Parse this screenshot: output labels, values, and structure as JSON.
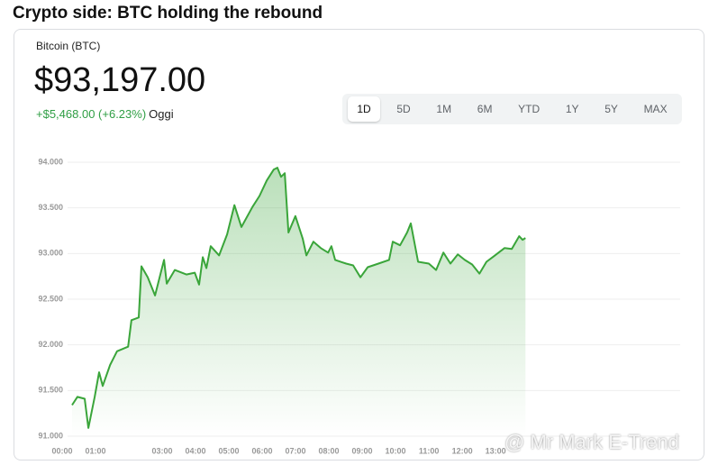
{
  "heading": "Crypto side: BTC holding the rebound",
  "widget": {
    "name": "Bitcoin (BTC)",
    "price": "$93,197.00",
    "change": "+$5,468.00 (+6.23%)",
    "period": "Oggi",
    "ranges": [
      "1D",
      "5D",
      "1M",
      "6M",
      "YTD",
      "1Y",
      "5Y",
      "MAX"
    ],
    "active_range": "1D"
  },
  "watermark": "@ Mr Mark E-Trend",
  "chart_data": {
    "type": "area",
    "color": "#3aa53a",
    "grid": true,
    "x": [
      0.54,
      0.7,
      0.92,
      1.03,
      1.22,
      1.35,
      1.46,
      1.68,
      1.89,
      2.22,
      2.32,
      2.54,
      2.62,
      2.81,
      3.03,
      3.3,
      3.38,
      3.62,
      3.97,
      4.22,
      4.35,
      4.46,
      4.57,
      4.7,
      4.95,
      5.19,
      5.41,
      5.62,
      5.95,
      6.16,
      6.38,
      6.59,
      6.7,
      6.81,
      6.92,
      7.03,
      7.24,
      7.46,
      7.57,
      7.78,
      8.0,
      8.22,
      8.32,
      8.43,
      8.76,
      8.97,
      9.19,
      9.41,
      9.73,
      10.05,
      10.16,
      10.38,
      10.59,
      10.7,
      10.92,
      11.24,
      11.46,
      11.68,
      11.89,
      12.11,
      12.32,
      12.54,
      12.76,
      12.97,
      13.19,
      13.51,
      13.73,
      13.95,
      14.05,
      14.14
    ],
    "values": [
      91340,
      91430,
      91410,
      91090,
      91430,
      91700,
      91550,
      91780,
      91930,
      91980,
      92270,
      92300,
      92860,
      92740,
      92540,
      92930,
      92670,
      92820,
      92770,
      92790,
      92660,
      92960,
      92840,
      93080,
      92980,
      93210,
      93530,
      93290,
      93510,
      93630,
      93800,
      93920,
      93940,
      93840,
      93880,
      93230,
      93410,
      93160,
      92980,
      93130,
      93060,
      93010,
      93080,
      92930,
      92890,
      92870,
      92740,
      92850,
      92890,
      92930,
      93130,
      93090,
      93230,
      93330,
      92910,
      92890,
      92820,
      93010,
      92890,
      92990,
      92930,
      92880,
      92780,
      92910,
      92970,
      93060,
      93050,
      93190,
      93150,
      93170
    ],
    "ylim": [
      91000,
      94000
    ],
    "yticks": [
      {
        "value": 91000,
        "label": "91.000"
      },
      {
        "value": 91500,
        "label": "91.500"
      },
      {
        "value": 92000,
        "label": "92.000"
      },
      {
        "value": 92500,
        "label": "92.500"
      },
      {
        "value": 93000,
        "label": "93.000"
      },
      {
        "value": 93500,
        "label": "93.500"
      },
      {
        "value": 94000,
        "label": "94.000"
      }
    ],
    "xlim": [
      0,
      18.78
    ],
    "xticks": [
      {
        "value": 0,
        "label": "00:00"
      },
      {
        "value": 1,
        "label": "01:00"
      },
      {
        "value": 3,
        "label": "03:00"
      },
      {
        "value": 4,
        "label": "04:00"
      },
      {
        "value": 5,
        "label": "05:00"
      },
      {
        "value": 6,
        "label": "06:00"
      },
      {
        "value": 7,
        "label": "07:00"
      },
      {
        "value": 8,
        "label": "08:00"
      },
      {
        "value": 9,
        "label": "09:00"
      },
      {
        "value": 10,
        "label": "10:00"
      },
      {
        "value": 11,
        "label": "11:00"
      },
      {
        "value": 12,
        "label": "12:00"
      },
      {
        "value": 13,
        "label": "13:00"
      }
    ]
  }
}
